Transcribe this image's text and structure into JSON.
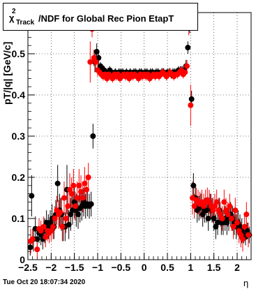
{
  "title": {
    "chi": "χ",
    "sup": "2",
    "sub": "Track",
    "rest": "/NDF for Global Rec Pion EtapT"
  },
  "footer": {
    "timestamp": "Tue Oct 20 18:07:34 2020"
  },
  "chart_data": {
    "type": "scatter",
    "title": "χ²_Track/NDF for Global Rec Pion EtapT",
    "xlabel": "η",
    "ylabel": "pT/|q| [GeV/c]",
    "xlim": [
      -2.5,
      2.3
    ],
    "ylim": [
      0,
      0.6
    ],
    "grid": true,
    "x_ticks": [
      -2.5,
      -2,
      -1.5,
      -1,
      -0.5,
      0,
      0.5,
      1,
      1.5,
      2
    ],
    "x_tick_labels": [
      "−2.5",
      "−2",
      "−1.5",
      "−1",
      "−0.5",
      "0",
      "0.5",
      "1",
      "1.5",
      "2"
    ],
    "y_ticks": [
      0,
      0.1,
      0.2,
      0.3,
      0.4,
      0.5
    ],
    "y_tick_labels": [
      "0",
      "0.1",
      "0.2",
      "0.3",
      "0.4",
      "0.5"
    ],
    "series": [
      {
        "color": "#000000",
        "x": [
          -2.45,
          -2.42,
          -2.38,
          -2.34,
          -2.3,
          -2.26,
          -2.22,
          -2.18,
          -2.14,
          -2.1,
          -2.06,
          -2.02,
          -1.98,
          -1.94,
          -1.9,
          -1.86,
          -1.82,
          -1.78,
          -1.74,
          -1.7,
          -1.66,
          -1.62,
          -1.58,
          -1.54,
          -1.5,
          -1.46,
          -1.42,
          -1.38,
          -1.34,
          -1.3,
          -1.26,
          -1.22,
          -1.18,
          -1.14,
          -1.1,
          -1.06,
          -1.02,
          -0.98,
          -0.94,
          -0.9,
          -0.86,
          -0.82,
          -0.78,
          -0.74,
          -0.7,
          -0.66,
          -0.62,
          -0.58,
          -0.54,
          -0.5,
          -0.46,
          -0.42,
          -0.38,
          -0.34,
          -0.3,
          -0.26,
          -0.22,
          -0.18,
          -0.14,
          -0.1,
          -0.06,
          -0.02,
          0.02,
          0.06,
          0.1,
          0.14,
          0.18,
          0.22,
          0.26,
          0.3,
          0.34,
          0.38,
          0.42,
          0.46,
          0.5,
          0.54,
          0.58,
          0.62,
          0.66,
          0.7,
          0.74,
          0.78,
          0.82,
          0.86,
          0.9,
          0.94,
          0.98,
          1.02,
          1.06,
          1.1,
          1.14,
          1.18,
          1.22,
          1.26,
          1.3,
          1.34,
          1.38,
          1.42,
          1.46,
          1.5,
          1.54,
          1.58,
          1.62,
          1.66,
          1.7,
          1.74,
          1.78,
          1.82,
          1.86,
          1.9,
          1.94,
          1.98,
          2.02,
          2.06,
          2.1,
          2.14,
          2.18,
          2.22,
          2.26
        ],
        "y": [
          0.03,
          0.155,
          0.05,
          0.075,
          0.05,
          0.065,
          0.06,
          0.05,
          0.07,
          0.09,
          0.08,
          0.09,
          0.1,
          0.08,
          0.11,
          0.185,
          0.12,
          0.11,
          0.08,
          0.08,
          0.17,
          0.085,
          0.11,
          0.12,
          0.14,
          0.12,
          0.11,
          0.125,
          0.13,
          0.14,
          0.13,
          0.135,
          0.13,
          0.135,
          0.3,
          0.48,
          0.505,
          0.49,
          0.47,
          0.465,
          0.46,
          0.455,
          0.455,
          0.46,
          0.455,
          0.45,
          0.455,
          0.45,
          0.455,
          0.455,
          0.455,
          0.45,
          0.455,
          0.45,
          0.455,
          0.45,
          0.455,
          0.455,
          0.45,
          0.455,
          0.455,
          0.45,
          0.455,
          0.455,
          0.45,
          0.455,
          0.455,
          0.45,
          0.455,
          0.455,
          0.45,
          0.455,
          0.455,
          0.45,
          0.455,
          0.455,
          0.45,
          0.455,
          0.455,
          0.455,
          0.46,
          0.46,
          0.46,
          0.46,
          0.47,
          0.515,
          0.565,
          0.39,
          0.18,
          0.15,
          0.12,
          0.125,
          0.13,
          0.11,
          0.12,
          0.12,
          0.1,
          0.13,
          0.12,
          0.1,
          0.08,
          0.09,
          0.12,
          0.09,
          0.09,
          0.1,
          0.09,
          0.1,
          0.11,
          0.1,
          0.09,
          0.08,
          0.09,
          0.08,
          0.07,
          0.06,
          0.055,
          0.07,
          0.06
        ],
        "err": [
          0.02,
          0.05,
          0.03,
          0.03,
          0.03,
          0.025,
          0.025,
          0.025,
          0.03,
          0.03,
          0.03,
          0.03,
          0.035,
          0.03,
          0.035,
          0.045,
          0.04,
          0.04,
          0.035,
          0.035,
          0.06,
          0.035,
          0.04,
          0.035,
          0.04,
          0.04,
          0.035,
          0.035,
          0.035,
          0.035,
          0.03,
          0.03,
          0.03,
          0.03,
          0.03,
          0.025,
          0.02,
          0.015,
          0.01,
          0.01,
          0.01,
          0.01,
          0.01,
          0.01,
          0.01,
          0.01,
          0.01,
          0.01,
          0.01,
          0.01,
          0.01,
          0.01,
          0.01,
          0.01,
          0.01,
          0.01,
          0.01,
          0.01,
          0.01,
          0.01,
          0.01,
          0.01,
          0.01,
          0.01,
          0.01,
          0.01,
          0.01,
          0.01,
          0.01,
          0.01,
          0.01,
          0.01,
          0.01,
          0.01,
          0.01,
          0.01,
          0.01,
          0.01,
          0.01,
          0.01,
          0.01,
          0.01,
          0.01,
          0.01,
          0.015,
          0.015,
          0.015,
          0.02,
          0.03,
          0.03,
          0.03,
          0.03,
          0.03,
          0.03,
          0.03,
          0.03,
          0.03,
          0.03,
          0.03,
          0.03,
          0.03,
          0.03,
          0.03,
          0.03,
          0.03,
          0.03,
          0.03,
          0.03,
          0.03,
          0.03,
          0.03,
          0.03,
          0.03,
          0.03,
          0.03,
          0.02,
          0.02,
          0.02,
          0.02
        ]
      },
      {
        "color": "#ff0000",
        "x": [
          -2.44,
          -2.4,
          -2.3,
          -2.26,
          -2.22,
          -2.16,
          -2.12,
          -2.08,
          -2.04,
          -2.0,
          -1.96,
          -1.92,
          -1.88,
          -1.84,
          -1.8,
          -1.76,
          -1.72,
          -1.68,
          -1.64,
          -1.6,
          -1.56,
          -1.52,
          -1.48,
          -1.44,
          -1.4,
          -1.36,
          -1.32,
          -1.28,
          -1.24,
          -1.2,
          -1.16,
          -1.12,
          -1.08,
          -1.04,
          -1.0,
          -0.96,
          -0.92,
          -0.88,
          -0.84,
          -0.8,
          -0.76,
          -0.72,
          -0.68,
          -0.64,
          -0.6,
          -0.56,
          -0.52,
          -0.48,
          -0.44,
          -0.4,
          -0.36,
          -0.32,
          -0.28,
          -0.24,
          -0.2,
          -0.16,
          -0.12,
          -0.08,
          -0.04,
          0.0,
          0.04,
          0.08,
          0.12,
          0.16,
          0.2,
          0.24,
          0.28,
          0.32,
          0.36,
          0.4,
          0.44,
          0.48,
          0.52,
          0.56,
          0.6,
          0.64,
          0.68,
          0.72,
          0.76,
          0.8,
          0.84,
          0.88,
          0.92,
          0.96,
          1.0,
          1.04,
          1.08,
          1.12,
          1.16,
          1.2,
          1.24,
          1.28,
          1.32,
          1.36,
          1.4,
          1.44,
          1.48,
          1.52,
          1.56,
          1.6,
          1.64,
          1.68,
          1.72,
          1.76,
          1.8,
          1.84,
          1.88,
          1.92,
          1.96,
          2.0,
          2.04,
          2.08,
          2.12,
          2.16,
          2.2,
          2.24
        ],
        "y": [
          0.045,
          0.05,
          0.025,
          0.075,
          0.07,
          0.08,
          0.055,
          0.07,
          0.065,
          0.07,
          0.08,
          0.1,
          0.12,
          0.11,
          0.115,
          0.08,
          0.15,
          0.1,
          0.13,
          0.17,
          0.16,
          0.18,
          0.13,
          0.15,
          0.18,
          0.165,
          0.15,
          0.185,
          0.17,
          0.2,
          0.48,
          0.56,
          0.49,
          0.48,
          0.46,
          0.455,
          0.45,
          0.445,
          0.45,
          0.44,
          0.45,
          0.445,
          0.44,
          0.45,
          0.445,
          0.45,
          0.44,
          0.445,
          0.45,
          0.445,
          0.45,
          0.44,
          0.45,
          0.445,
          0.45,
          0.445,
          0.44,
          0.45,
          0.445,
          0.45,
          0.445,
          0.45,
          0.44,
          0.445,
          0.45,
          0.445,
          0.45,
          0.445,
          0.45,
          0.455,
          0.45,
          0.445,
          0.45,
          0.455,
          0.45,
          0.445,
          0.45,
          0.45,
          0.455,
          0.46,
          0.45,
          0.455,
          0.47,
          0.565,
          0.375,
          0.15,
          0.13,
          0.145,
          0.14,
          0.135,
          0.14,
          0.13,
          0.14,
          0.145,
          0.14,
          0.13,
          0.12,
          0.13,
          0.14,
          0.12,
          0.11,
          0.1,
          0.14,
          0.12,
          0.11,
          0.13,
          0.1,
          0.08,
          0.12,
          0.09,
          0.07,
          0.06,
          0.05,
          0.08,
          0.11,
          0.06
        ],
        "err": [
          0.03,
          0.025,
          0.02,
          0.025,
          0.025,
          0.025,
          0.025,
          0.025,
          0.025,
          0.025,
          0.03,
          0.03,
          0.035,
          0.035,
          0.035,
          0.035,
          0.04,
          0.035,
          0.04,
          0.04,
          0.04,
          0.04,
          0.035,
          0.04,
          0.04,
          0.04,
          0.035,
          0.04,
          0.035,
          0.035,
          0.05,
          0.02,
          0.02,
          0.02,
          0.015,
          0.01,
          0.01,
          0.01,
          0.01,
          0.01,
          0.01,
          0.01,
          0.01,
          0.01,
          0.01,
          0.01,
          0.01,
          0.01,
          0.01,
          0.01,
          0.01,
          0.01,
          0.01,
          0.01,
          0.01,
          0.01,
          0.01,
          0.01,
          0.01,
          0.01,
          0.01,
          0.01,
          0.01,
          0.01,
          0.01,
          0.01,
          0.01,
          0.01,
          0.01,
          0.01,
          0.01,
          0.01,
          0.01,
          0.01,
          0.01,
          0.01,
          0.01,
          0.01,
          0.01,
          0.01,
          0.01,
          0.01,
          0.015,
          0.02,
          0.05,
          0.04,
          0.03,
          0.03,
          0.03,
          0.03,
          0.03,
          0.03,
          0.03,
          0.03,
          0.03,
          0.03,
          0.03,
          0.03,
          0.03,
          0.03,
          0.03,
          0.03,
          0.03,
          0.03,
          0.03,
          0.03,
          0.03,
          0.03,
          0.03,
          0.03,
          0.03,
          0.03,
          0.03,
          0.03,
          0.03,
          0.03
        ]
      }
    ]
  }
}
